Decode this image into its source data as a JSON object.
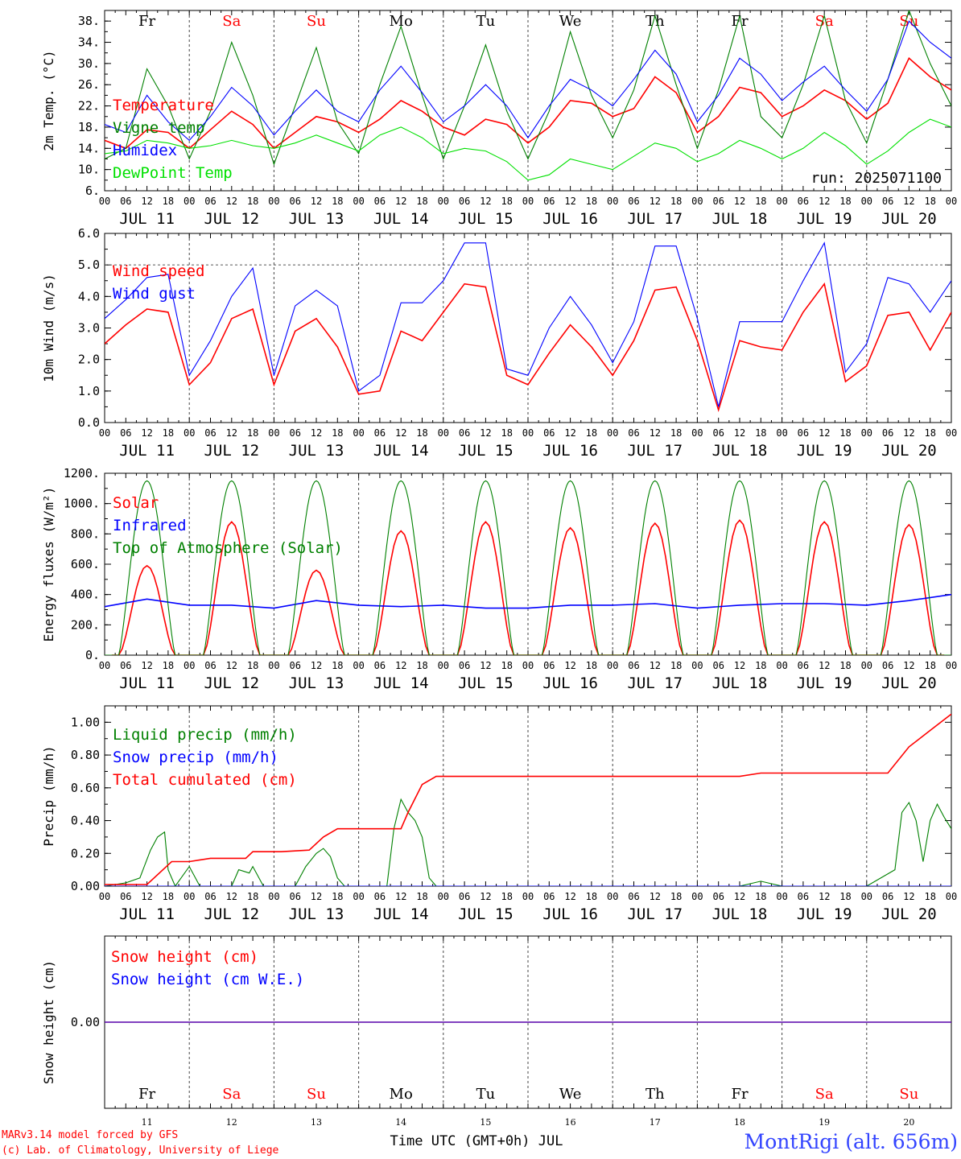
{
  "days": {
    "weekday_labels": [
      "Fr",
      "Sa",
      "Su",
      "Mo",
      "Tu",
      "We",
      "Th",
      "Fr",
      "Sa",
      "Su"
    ],
    "weekday_colors": [
      "#000000",
      "#ff0000",
      "#ff0000",
      "#000000",
      "#000000",
      "#000000",
      "#000000",
      "#000000",
      "#ff0000",
      "#ff0000"
    ],
    "date_labels": [
      "JUL 11",
      "JUL 12",
      "JUL 13",
      "JUL 14",
      "JUL 15",
      "JUL 16",
      "JUL 17",
      "JUL 18",
      "JUL 19",
      "JUL 20"
    ],
    "hour_labels": [
      "00",
      "06",
      "12",
      "18"
    ],
    "last_hour_label": "00",
    "bottom_day_numbers": [
      "11",
      "12",
      "13",
      "14",
      "15",
      "16",
      "17",
      "18",
      "19",
      "20"
    ]
  },
  "footer": {
    "model_line": "MARv3.14 model forced by GFS",
    "copyright_line": "(c) Lab. of Climatology, University of Liege",
    "x_axis_title": "Time UTC (GMT+0h) JUL",
    "station": "MontRigi (alt. 656m)"
  },
  "colors": {
    "red": "#ff0000",
    "green": "#008000",
    "blue": "#0000ff",
    "lightgreen": "#00e000",
    "station": "#3344ff"
  },
  "chart_data": [
    {
      "type": "line",
      "ylabel": "2m Temp. (°C)",
      "ylim": [
        6,
        40
      ],
      "yticks": [
        6,
        10,
        14,
        18,
        22,
        26,
        30,
        34,
        38
      ],
      "ytick_labels": [
        "6.",
        "10.",
        "14.",
        "18.",
        "22.",
        "26.",
        "30.",
        "34.",
        "38."
      ],
      "x_unit": "hours since JUL 11 00 UTC",
      "annotation": "run: 2025071100",
      "series": [
        {
          "name": "Temperature",
          "color": "red",
          "x": [
            0,
            6,
            12,
            18,
            24,
            30,
            36,
            42,
            48,
            54,
            60,
            66,
            72,
            78,
            84,
            90,
            96,
            102,
            108,
            114,
            120,
            126,
            132,
            138,
            144,
            150,
            156,
            162,
            168,
            174,
            180,
            186,
            192,
            198,
            204,
            210,
            216,
            222,
            228,
            234,
            240
          ],
          "y": [
            15.5,
            14.0,
            17.5,
            17.0,
            14.0,
            17.5,
            21.0,
            18.5,
            14.0,
            17.0,
            20.0,
            19.0,
            17.0,
            19.5,
            23.0,
            21.0,
            18.0,
            16.5,
            19.5,
            18.5,
            15.0,
            18.0,
            23.0,
            22.5,
            20.0,
            21.5,
            27.5,
            24.5,
            17.0,
            20.0,
            25.5,
            24.5,
            20.0,
            22.0,
            25.0,
            23.0,
            19.5,
            22.5,
            31.0,
            27.5,
            25.0
          ]
        },
        {
          "name": "Vigne temp",
          "color": "green",
          "x": [
            0,
            6,
            12,
            18,
            24,
            30,
            36,
            42,
            48,
            54,
            60,
            66,
            72,
            78,
            84,
            90,
            96,
            102,
            108,
            114,
            120,
            126,
            132,
            138,
            144,
            150,
            156,
            162,
            168,
            174,
            180,
            186,
            192,
            198,
            204,
            210,
            216,
            222,
            228,
            234,
            240
          ],
          "y": [
            12.0,
            14.0,
            29.0,
            22.0,
            12.0,
            21.0,
            34.0,
            24.0,
            11.0,
            22.0,
            33.0,
            19.0,
            13.0,
            26.0,
            37.0,
            24.0,
            12.0,
            22.0,
            33.5,
            21.0,
            12.0,
            21.0,
            36.0,
            24.0,
            16.0,
            25.0,
            39.0,
            26.0,
            14.0,
            25.0,
            39.0,
            20.0,
            16.0,
            26.0,
            39.0,
            23.0,
            15.0,
            27.0,
            40.0,
            30.0,
            22.0
          ]
        },
        {
          "name": "Humidex",
          "color": "blue",
          "x": [
            0,
            6,
            12,
            18,
            24,
            30,
            36,
            42,
            48,
            54,
            60,
            66,
            72,
            78,
            84,
            90,
            96,
            102,
            108,
            114,
            120,
            126,
            132,
            138,
            144,
            150,
            156,
            162,
            168,
            174,
            180,
            186,
            192,
            198,
            204,
            210,
            216,
            222,
            228,
            234,
            240
          ],
          "y": [
            18.5,
            17.0,
            24.0,
            19.0,
            15.5,
            20.0,
            25.5,
            22.0,
            16.5,
            21.0,
            25.0,
            21.0,
            19.0,
            25.0,
            29.5,
            24.5,
            19.0,
            22.0,
            26.0,
            22.0,
            16.0,
            22.0,
            27.0,
            25.0,
            22.0,
            27.0,
            32.5,
            28.0,
            19.0,
            24.0,
            31.0,
            28.0,
            23.0,
            26.5,
            29.5,
            25.0,
            21.0,
            27.0,
            38.0,
            34.0,
            31.0
          ]
        },
        {
          "name": "DewPoint Temp",
          "color": "lightgreen",
          "x": [
            0,
            6,
            12,
            18,
            24,
            30,
            36,
            42,
            48,
            54,
            60,
            66,
            72,
            78,
            84,
            90,
            96,
            102,
            108,
            114,
            120,
            126,
            132,
            138,
            144,
            150,
            156,
            162,
            168,
            174,
            180,
            186,
            192,
            198,
            204,
            210,
            216,
            222,
            228,
            234,
            240
          ],
          "y": [
            13.0,
            13.5,
            15.5,
            15.0,
            14.0,
            14.5,
            15.5,
            14.5,
            14.0,
            15.0,
            16.5,
            15.0,
            13.5,
            16.5,
            18.0,
            16.0,
            13.0,
            14.0,
            13.5,
            11.5,
            8.0,
            9.0,
            12.0,
            11.0,
            10.0,
            12.5,
            15.0,
            14.0,
            11.5,
            13.0,
            15.5,
            14.0,
            12.0,
            14.0,
            17.0,
            14.5,
            11.0,
            13.5,
            17.0,
            19.5,
            18.0
          ]
        }
      ]
    },
    {
      "type": "line",
      "ylabel": "10m Wind (m/s)",
      "ylim": [
        0,
        6
      ],
      "yticks": [
        0,
        1,
        2,
        3,
        4,
        5,
        6
      ],
      "ytick_labels": [
        "0.0",
        "1.0",
        "2.0",
        "3.0",
        "4.0",
        "5.0",
        "6.0"
      ],
      "dashed_reference": 5.0,
      "series": [
        {
          "name": "Wind speed",
          "color": "red",
          "x": [
            0,
            6,
            12,
            18,
            24,
            30,
            36,
            42,
            48,
            54,
            60,
            66,
            72,
            78,
            84,
            90,
            96,
            102,
            108,
            114,
            120,
            126,
            132,
            138,
            144,
            150,
            156,
            162,
            168,
            174,
            180,
            186,
            192,
            198,
            204,
            210,
            216,
            222,
            228,
            234,
            240
          ],
          "y": [
            2.5,
            3.1,
            3.6,
            3.5,
            1.2,
            1.9,
            3.3,
            3.6,
            1.2,
            2.9,
            3.3,
            2.4,
            0.9,
            1.0,
            2.9,
            2.6,
            3.5,
            4.4,
            4.3,
            1.5,
            1.2,
            2.2,
            3.1,
            2.4,
            1.5,
            2.6,
            4.2,
            4.3,
            2.6,
            0.4,
            2.6,
            2.4,
            2.3,
            3.5,
            4.4,
            1.3,
            1.8,
            3.4,
            3.5,
            2.3,
            3.5
          ]
        },
        {
          "name": "Wind gust",
          "color": "blue",
          "x": [
            0,
            6,
            12,
            18,
            24,
            30,
            36,
            42,
            48,
            54,
            60,
            66,
            72,
            78,
            84,
            90,
            96,
            102,
            108,
            114,
            120,
            126,
            132,
            138,
            144,
            150,
            156,
            162,
            168,
            174,
            180,
            186,
            192,
            198,
            204,
            210,
            216,
            222,
            228,
            234,
            240
          ],
          "y": [
            3.3,
            3.9,
            4.6,
            4.7,
            1.5,
            2.6,
            4.0,
            4.9,
            1.5,
            3.7,
            4.2,
            3.7,
            1.0,
            1.5,
            3.8,
            3.8,
            4.5,
            5.7,
            5.7,
            1.7,
            1.5,
            3.0,
            4.0,
            3.1,
            1.9,
            3.2,
            5.6,
            5.6,
            3.3,
            0.5,
            3.2,
            3.2,
            3.2,
            4.5,
            5.7,
            1.6,
            2.5,
            4.6,
            4.4,
            3.5,
            4.5
          ]
        }
      ]
    },
    {
      "type": "line",
      "ylabel": "Energy fluxes (W/m²)",
      "ylim": [
        0,
        1200
      ],
      "yticks": [
        0,
        200,
        400,
        600,
        800,
        1000,
        1200
      ],
      "ytick_labels": [
        "0.",
        "200.",
        "400.",
        "600.",
        "800.",
        "1000.",
        "1200."
      ],
      "series": [
        {
          "name": "Solar",
          "color": "red",
          "peaks_x": [
            12,
            36,
            60,
            84,
            108,
            132,
            156,
            180,
            204,
            228
          ],
          "peaks_y": [
            590,
            880,
            560,
            820,
            880,
            840,
            870,
            890,
            880,
            860
          ]
        },
        {
          "name": "Infrared",
          "color": "blue",
          "x": [
            0,
            12,
            24,
            36,
            48,
            60,
            72,
            84,
            96,
            108,
            120,
            132,
            144,
            156,
            168,
            180,
            192,
            204,
            216,
            228,
            240
          ],
          "y": [
            320,
            370,
            330,
            330,
            310,
            360,
            330,
            320,
            330,
            310,
            310,
            330,
            330,
            340,
            310,
            330,
            340,
            340,
            330,
            360,
            400
          ]
        },
        {
          "name": "Top of Atmosphere (Solar)",
          "color": "green",
          "peak": 1150,
          "day_start_hour": 4,
          "day_end_hour": 20
        }
      ]
    },
    {
      "type": "line",
      "ylabel": "Precip (mm/h)",
      "ylim": [
        0,
        1.1
      ],
      "yticks": [
        0,
        0.2,
        0.4,
        0.6,
        0.8,
        1.0
      ],
      "ytick_labels": [
        "0.00",
        "0.20",
        "0.40",
        "0.60",
        "0.80",
        "1.00"
      ],
      "series": [
        {
          "name": "Liquid precip (mm/h)",
          "color": "green",
          "x": [
            0,
            6,
            10,
            13,
            15,
            17,
            18,
            20,
            24,
            27,
            30,
            36,
            38,
            41,
            42,
            45,
            48,
            54,
            57,
            60,
            62,
            64,
            66,
            68,
            72,
            80,
            82,
            84,
            86,
            88,
            90,
            92,
            94,
            96,
            120,
            144,
            180,
            186,
            192,
            204,
            216,
            224,
            226,
            228,
            230,
            232,
            234,
            236,
            238,
            240
          ],
          "y": [
            0,
            0.02,
            0.05,
            0.22,
            0.3,
            0.33,
            0.1,
            0,
            0.12,
            0,
            0,
            0,
            0.1,
            0.08,
            0.12,
            0,
            0,
            0,
            0.12,
            0.2,
            0.23,
            0.18,
            0.05,
            0,
            0,
            0,
            0.35,
            0.53,
            0.45,
            0.4,
            0.3,
            0.05,
            0,
            0,
            0,
            0,
            0,
            0.03,
            0,
            0,
            0,
            0.1,
            0.45,
            0.51,
            0.4,
            0.15,
            0.4,
            0.5,
            0.42,
            0.35
          ]
        },
        {
          "name": "Snow precip (mm/h)",
          "color": "blue",
          "x": [
            0,
            240
          ],
          "y": [
            0,
            0
          ]
        },
        {
          "name": "Total cumulated (cm)",
          "color": "red",
          "x": [
            0,
            12,
            19,
            24,
            27,
            30,
            40,
            42,
            50,
            58,
            62,
            66,
            72,
            84,
            86,
            90,
            94,
            150,
            180,
            186,
            200,
            216,
            222,
            228,
            234,
            240
          ],
          "y": [
            0.01,
            0.01,
            0.15,
            0.15,
            0.16,
            0.17,
            0.17,
            0.21,
            0.21,
            0.22,
            0.3,
            0.35,
            0.35,
            0.35,
            0.45,
            0.62,
            0.67,
            0.67,
            0.67,
            0.69,
            0.69,
            0.69,
            0.69,
            0.85,
            0.95,
            1.05
          ]
        }
      ]
    },
    {
      "type": "line",
      "ylabel": "Snow height (cm)",
      "ylim": [
        -1,
        1
      ],
      "yticks": [
        0
      ],
      "ytick_labels": [
        "0.00"
      ],
      "series": [
        {
          "name": "Snow height (cm)",
          "color": "red",
          "x": [
            0,
            240
          ],
          "y": [
            0,
            0
          ]
        },
        {
          "name": "Snow height (cm W.E.)",
          "color": "blue",
          "x": [
            0,
            240
          ],
          "y": [
            0,
            0
          ]
        }
      ]
    }
  ]
}
